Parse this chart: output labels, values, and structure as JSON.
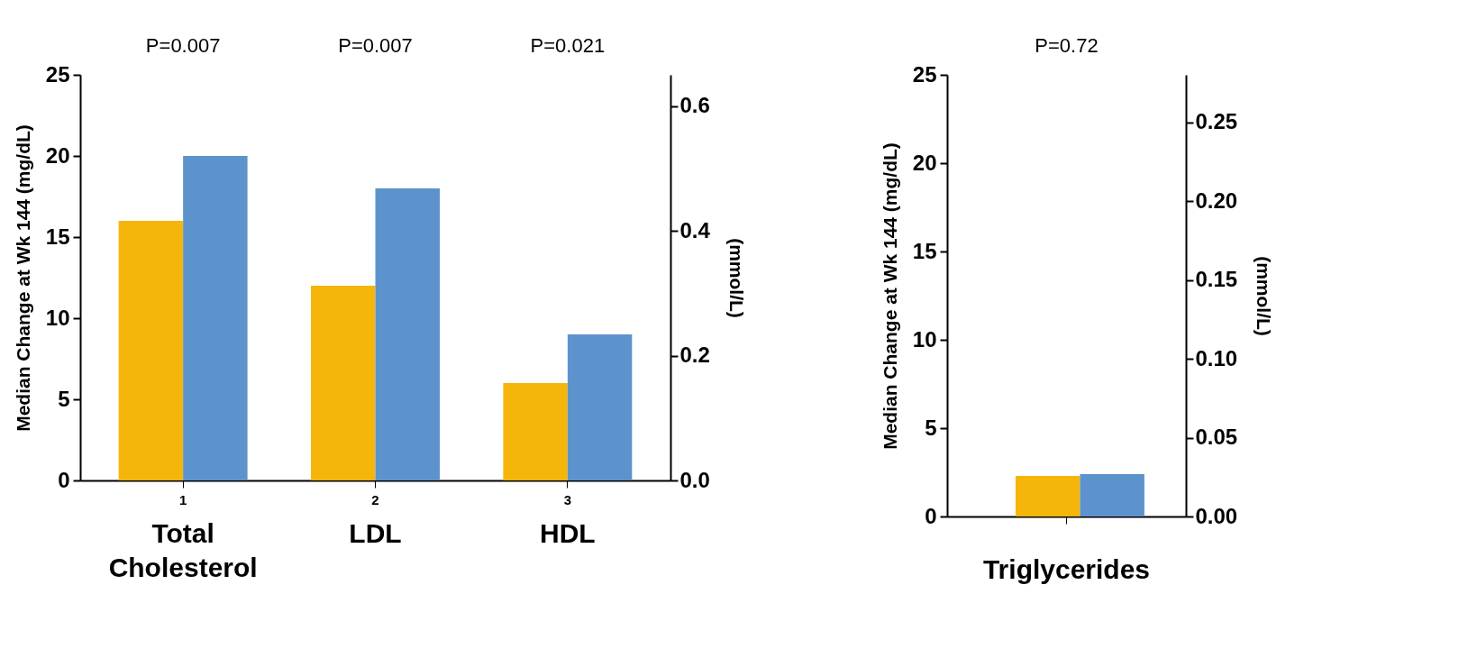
{
  "chart_data": [
    {
      "type": "bar",
      "categories": [
        "Total Cholesterol",
        "LDL",
        "HDL"
      ],
      "series": [
        {
          "color": "#f5b50a",
          "values": [
            16,
            12,
            6
          ]
        },
        {
          "color": "#5c93cc",
          "values": [
            20,
            18,
            9
          ]
        }
      ],
      "ylabel": "Median Change at  Wk 144 (mg/dL)",
      "y2label": "(mmol/L)",
      "ylim": [
        0,
        25
      ],
      "yticks": [
        0,
        5,
        10,
        15,
        20,
        25
      ],
      "y2lim": [
        0,
        0.65
      ],
      "y2ticks": [
        {
          "value": 0,
          "label": "0.0"
        },
        0.2,
        0.4,
        0.6
      ],
      "annotations": [
        "P=0.007",
        "P=0.007",
        "P=0.021",
        "1",
        "2",
        "3"
      ]
    },
    {
      "type": "bar",
      "categories": [
        "Triglycerides"
      ],
      "series": [
        {
          "color": "#f5b50a",
          "values": [
            2.3
          ]
        },
        {
          "color": "#5c93cc",
          "values": [
            2.4
          ]
        }
      ],
      "ylabel": "Median Change at  Wk 144 (mg/dL)",
      "y2label": "(mmol/L)",
      "ylim": [
        0,
        25
      ],
      "yticks": [
        0,
        5,
        10,
        15,
        20,
        25
      ],
      "y2lim": [
        0,
        0.28
      ],
      "y2ticks": [
        {
          "value": 0,
          "label": "0.00"
        },
        {
          "value": 0.05,
          "label": "0.05"
        },
        {
          "value": 0.1,
          "label": "0.10"
        },
        {
          "value": 0.15,
          "label": "0.15"
        },
        {
          "value": 0.2,
          "label": "0.20"
        },
        {
          "value": 0.25,
          "label": "0.25"
        }
      ],
      "annotations": [
        "P=0.72"
      ]
    }
  ]
}
